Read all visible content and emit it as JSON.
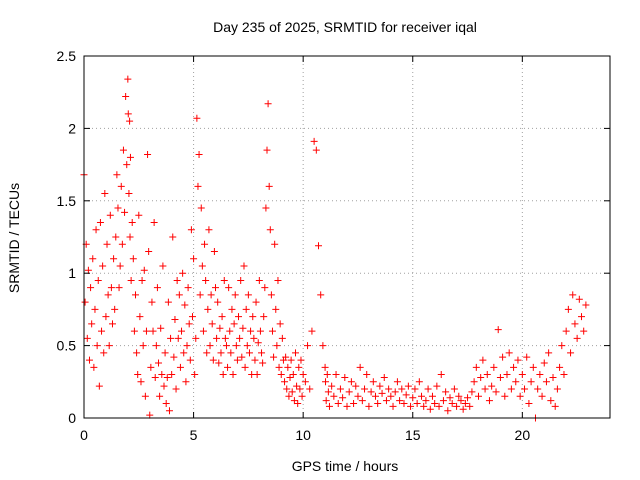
{
  "chart_data": {
    "type": "scatter",
    "title": "Day 235 of 2025, SRMTID for receiver iqal",
    "xlabel": "GPS time / hours",
    "ylabel": "SRMTID / TECUs",
    "xlim": [
      0,
      24.0
    ],
    "ylim": [
      0,
      2.5
    ],
    "xticks": [
      0,
      5,
      10,
      15,
      20
    ],
    "yticks": [
      0,
      0.5,
      1,
      1.5,
      2,
      2.5
    ],
    "grid": true,
    "marker": "+",
    "color": "#ff0000",
    "series": [
      {
        "name": "SRMTID",
        "x": [
          0.0,
          0.05,
          0.1,
          0.15,
          0.2,
          0.25,
          0.3,
          0.35,
          0.4,
          0.45,
          0.5,
          0.55,
          0.6,
          0.65,
          0.7,
          0.75,
          0.8,
          0.85,
          0.9,
          0.95,
          1.0,
          1.05,
          1.1,
          1.15,
          1.2,
          1.25,
          1.3,
          1.35,
          1.4,
          1.45,
          1.5,
          1.55,
          1.6,
          1.65,
          1.7,
          1.75,
          1.8,
          1.85,
          1.9,
          1.95,
          2.0,
          2.02,
          2.05,
          2.08,
          2.1,
          2.12,
          2.15,
          2.2,
          2.25,
          2.3,
          2.35,
          2.4,
          2.45,
          2.5,
          2.55,
          2.6,
          2.65,
          2.7,
          2.75,
          2.8,
          2.85,
          2.9,
          2.95,
          3.0,
          3.05,
          3.1,
          3.15,
          3.2,
          3.25,
          3.3,
          3.35,
          3.4,
          3.45,
          3.5,
          3.55,
          3.6,
          3.65,
          3.7,
          3.75,
          3.8,
          3.85,
          3.9,
          3.95,
          4.0,
          4.05,
          4.1,
          4.15,
          4.2,
          4.25,
          4.3,
          4.35,
          4.4,
          4.45,
          4.5,
          4.55,
          4.6,
          4.65,
          4.7,
          4.75,
          4.8,
          4.85,
          4.9,
          4.95,
          5.0,
          5.05,
          5.1,
          5.15,
          5.2,
          5.25,
          5.3,
          5.35,
          5.4,
          5.45,
          5.5,
          5.55,
          5.6,
          5.65,
          5.7,
          5.75,
          5.8,
          5.85,
          5.9,
          5.95,
          6.0,
          6.05,
          6.1,
          6.15,
          6.2,
          6.25,
          6.3,
          6.35,
          6.4,
          6.45,
          6.5,
          6.55,
          6.6,
          6.65,
          6.7,
          6.75,
          6.8,
          6.85,
          6.9,
          6.95,
          7.0,
          7.05,
          7.1,
          7.15,
          7.2,
          7.25,
          7.3,
          7.35,
          7.4,
          7.45,
          7.5,
          7.55,
          7.6,
          7.65,
          7.7,
          7.75,
          7.8,
          7.85,
          7.9,
          7.95,
          8.0,
          8.05,
          8.1,
          8.15,
          8.2,
          8.25,
          8.3,
          8.35,
          8.4,
          8.45,
          8.5,
          8.55,
          8.6,
          8.65,
          8.7,
          8.75,
          8.8,
          8.85,
          8.9,
          8.95,
          9.0,
          9.05,
          9.1,
          9.15,
          9.2,
          9.25,
          9.3,
          9.35,
          9.4,
          9.45,
          9.5,
          9.55,
          9.6,
          9.65,
          9.7,
          9.75,
          9.8,
          9.85,
          9.9,
          9.95,
          10.0,
          10.1,
          10.2,
          10.3,
          10.4,
          10.5,
          10.6,
          10.7,
          10.8,
          10.9,
          11.0,
          11.02,
          11.05,
          11.1,
          11.15,
          11.2,
          11.3,
          11.4,
          11.5,
          11.6,
          11.7,
          11.8,
          11.9,
          12.0,
          12.1,
          12.2,
          12.3,
          12.4,
          12.5,
          12.6,
          12.7,
          12.8,
          12.9,
          13.0,
          13.1,
          13.2,
          13.3,
          13.4,
          13.5,
          13.6,
          13.7,
          13.8,
          13.9,
          14.0,
          14.1,
          14.2,
          14.3,
          14.4,
          14.5,
          14.6,
          14.7,
          14.8,
          14.9,
          15.0,
          15.1,
          15.2,
          15.3,
          15.4,
          15.5,
          15.6,
          15.7,
          15.8,
          15.9,
          16.0,
          16.1,
          16.2,
          16.3,
          16.4,
          16.5,
          16.6,
          16.7,
          16.8,
          16.9,
          17.0,
          17.1,
          17.2,
          17.3,
          17.4,
          17.5,
          17.6,
          17.7,
          17.8,
          17.9,
          18.0,
          18.1,
          18.2,
          18.3,
          18.4,
          18.5,
          18.6,
          18.7,
          18.8,
          18.9,
          19.0,
          19.1,
          19.2,
          19.3,
          19.4,
          19.5,
          19.6,
          19.7,
          19.8,
          19.9,
          20.0,
          20.1,
          20.2,
          20.3,
          20.4,
          20.5,
          20.6,
          20.7,
          20.8,
          20.9,
          21.0,
          21.1,
          21.2,
          21.3,
          21.4,
          21.5,
          21.6,
          21.7,
          21.8,
          21.9,
          22.0,
          22.1,
          22.2,
          22.3,
          22.4,
          22.5,
          22.6,
          22.7,
          22.8,
          22.9
        ],
        "y": [
          1.68,
          0.8,
          1.2,
          0.55,
          1.02,
          0.4,
          0.9,
          0.65,
          1.1,
          0.35,
          0.75,
          1.3,
          0.5,
          0.95,
          0.22,
          1.35,
          0.6,
          1.05,
          0.45,
          1.55,
          0.7,
          1.2,
          0.85,
          0.5,
          1.4,
          0.9,
          0.65,
          1.1,
          0.75,
          1.25,
          1.68,
          1.45,
          0.9,
          1.05,
          1.6,
          1.2,
          1.85,
          1.42,
          2.22,
          1.75,
          2.34,
          2.1,
          1.55,
          2.05,
          1.25,
          1.8,
          0.95,
          1.35,
          1.1,
          0.6,
          0.85,
          0.45,
          0.3,
          1.4,
          0.7,
          0.25,
          0.95,
          0.5,
          1.02,
          0.15,
          0.6,
          1.82,
          1.15,
          0.02,
          0.35,
          0.8,
          0.6,
          1.35,
          0.28,
          0.5,
          0.9,
          0.38,
          0.15,
          0.62,
          0.3,
          1.05,
          0.22,
          0.45,
          0.1,
          0.28,
          0.8,
          0.05,
          0.55,
          0.3,
          1.25,
          0.42,
          0.68,
          0.2,
          0.95,
          0.55,
          0.85,
          0.35,
          0.6,
          1.0,
          0.45,
          0.78,
          0.25,
          0.5,
          0.9,
          0.65,
          0.4,
          1.3,
          0.7,
          1.1,
          0.3,
          0.55,
          2.07,
          1.6,
          1.82,
          0.85,
          1.45,
          1.05,
          0.6,
          1.2,
          0.95,
          0.45,
          0.75,
          1.3,
          0.5,
          0.85,
          0.65,
          0.4,
          1.15,
          0.9,
          0.55,
          0.8,
          0.38,
          0.62,
          0.45,
          0.7,
          0.3,
          0.95,
          0.55,
          0.5,
          0.35,
          0.9,
          0.6,
          0.45,
          0.75,
          0.3,
          0.65,
          0.85,
          0.5,
          0.4,
          0.7,
          0.55,
          0.95,
          0.42,
          0.62,
          1.05,
          0.35,
          0.75,
          0.5,
          0.85,
          0.45,
          0.6,
          0.3,
          0.7,
          0.55,
          0.4,
          0.8,
          0.3,
          0.52,
          0.95,
          0.6,
          0.45,
          0.38,
          0.7,
          0.9,
          1.45,
          1.85,
          2.17,
          1.6,
          1.3,
          0.85,
          0.6,
          0.42,
          1.2,
          0.75,
          0.5,
          0.95,
          0.35,
          0.65,
          0.3,
          0.55,
          0.4,
          0.25,
          0.42,
          0.2,
          0.35,
          0.15,
          0.28,
          0.4,
          0.18,
          0.3,
          0.12,
          0.45,
          0.22,
          0.1,
          0.35,
          0.2,
          0.4,
          0.15,
          0.3,
          0.25,
          0.5,
          0.2,
          0.6,
          1.91,
          1.85,
          1.19,
          0.85,
          0.5,
          0.35,
          0.25,
          0.12,
          0.3,
          0.18,
          0.08,
          0.22,
          0.15,
          0.3,
          0.1,
          0.2,
          0.14,
          0.28,
          0.08,
          0.18,
          0.25,
          0.1,
          0.22,
          0.15,
          0.35,
          0.12,
          0.2,
          0.3,
          0.08,
          0.18,
          0.25,
          0.15,
          0.1,
          0.22,
          0.17,
          0.28,
          0.12,
          0.2,
          0.15,
          0.08,
          0.18,
          0.25,
          0.12,
          0.2,
          0.1,
          0.16,
          0.22,
          0.08,
          0.14,
          0.2,
          0.1,
          0.25,
          0.15,
          0.08,
          0.12,
          0.2,
          0.06,
          0.15,
          0.1,
          0.22,
          0.08,
          0.3,
          0.12,
          0.18,
          0.05,
          0.14,
          0.1,
          0.2,
          0.08,
          0.15,
          0.12,
          0.06,
          0.1,
          0.14,
          0.08,
          0.18,
          0.25,
          0.35,
          0.15,
          0.28,
          0.4,
          0.2,
          0.3,
          0.12,
          0.22,
          0.35,
          0.18,
          0.61,
          0.28,
          0.42,
          0.15,
          0.3,
          0.45,
          0.2,
          0.35,
          0.25,
          0.4,
          0.15,
          0.3,
          0.2,
          0.42,
          0.1,
          0.25,
          0.35,
          0.0,
          0.2,
          0.3,
          0.15,
          0.38,
          0.25,
          0.45,
          0.12,
          0.28,
          0.08,
          0.2,
          0.35,
          0.5,
          0.3,
          0.6,
          0.75,
          0.45,
          0.85,
          0.65,
          0.55,
          0.82,
          0.7,
          0.6,
          0.78
        ]
      }
    ]
  }
}
